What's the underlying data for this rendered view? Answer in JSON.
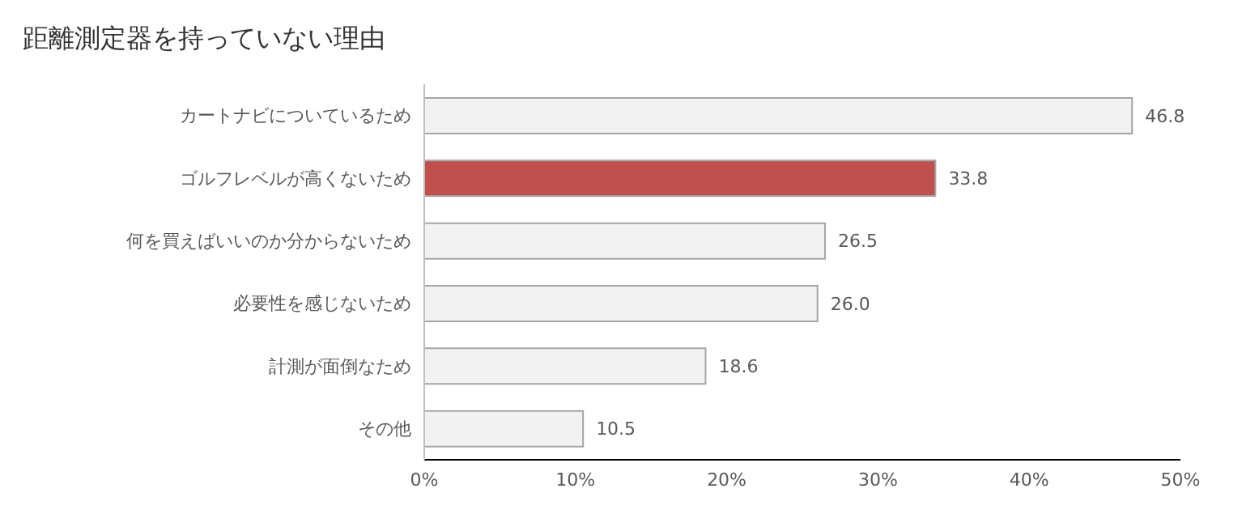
{
  "chart_data": {
    "type": "bar",
    "orientation": "horizontal",
    "title": "距離測定器を持っていない理由",
    "categories": [
      "カートナビについているため",
      "ゴルフレベルが高くないため",
      "何を買えばいいのか分からないため",
      "必要性を感じないため",
      "計測が面倒なため",
      "その他"
    ],
    "values": [
      46.8,
      33.8,
      26.5,
      26.0,
      18.6,
      10.5
    ],
    "value_labels": [
      "46.8",
      "33.8",
      "26.5",
      "26.0",
      "18.6",
      "10.5"
    ],
    "colors": [
      "#f2f2f2",
      "#c0504d",
      "#f2f2f2",
      "#f2f2f2",
      "#f2f2f2",
      "#f2f2f2"
    ],
    "xlim": [
      0,
      50
    ],
    "xticks": [
      {
        "value": 0,
        "label": "0%"
      },
      {
        "value": 10,
        "label": "10%"
      },
      {
        "value": 20,
        "label": "20%"
      },
      {
        "value": 30,
        "label": "30%"
      },
      {
        "value": 40,
        "label": "40%"
      },
      {
        "value": 50,
        "label": "50%"
      }
    ],
    "grid": false
  }
}
